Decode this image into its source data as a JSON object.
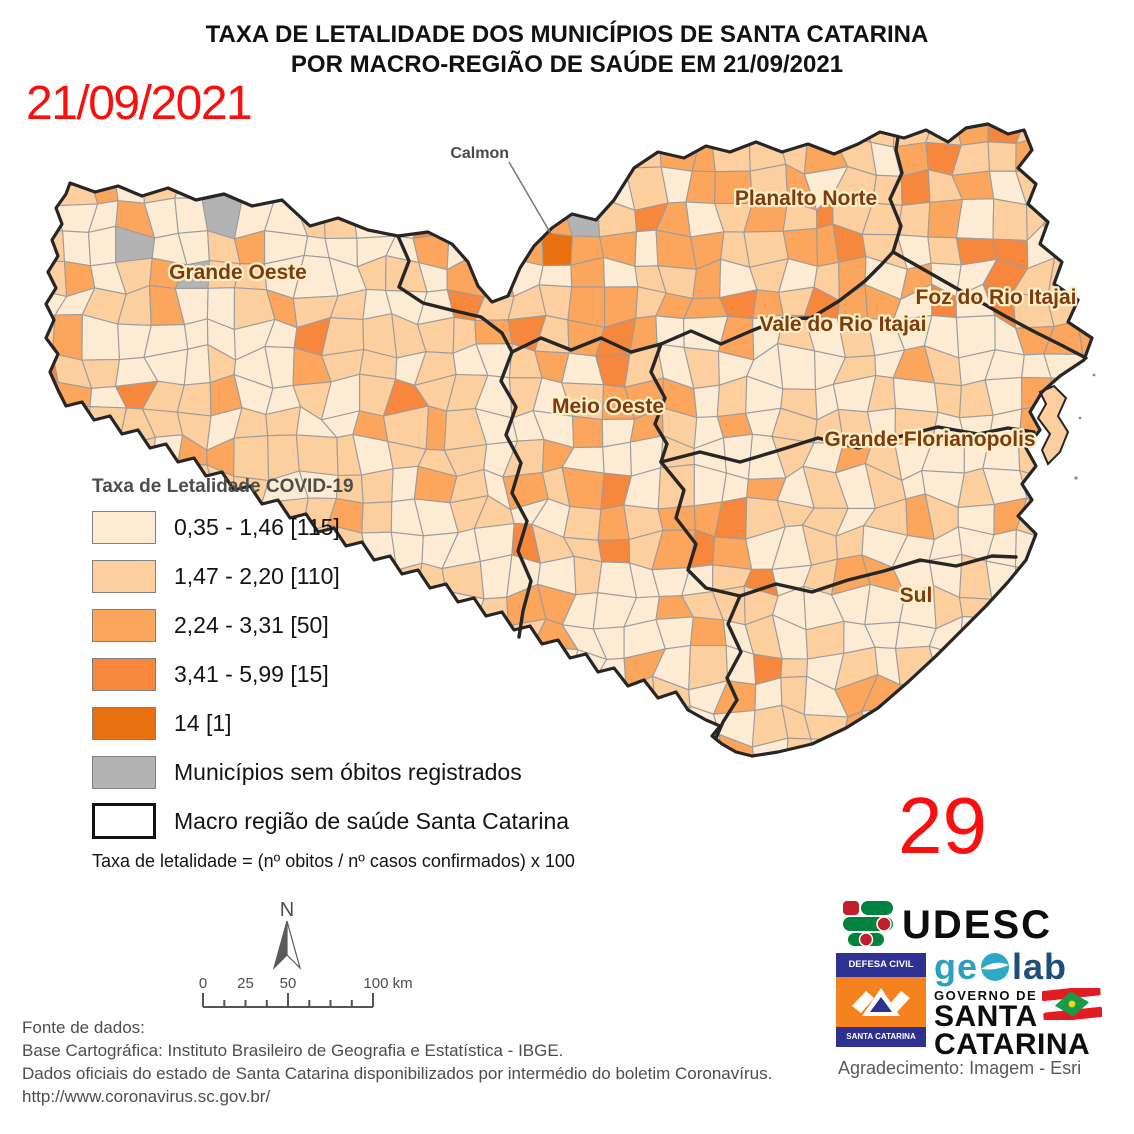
{
  "title": {
    "line1": "TAXA DE LETALIDADE DOS MUNICÍPIOS DE SANTA CATARINA",
    "line2": "POR MACRO-REGIÃO DE SAÚDE EM 21/09/2021"
  },
  "date_annotation": "21/09/2021",
  "count_annotation": "29",
  "map": {
    "region_labels": [
      "Grande Oeste",
      "Planalto Norte",
      "Meio Oeste",
      "Vale do Rio Itajai",
      "Foz do Rio Itajai",
      "Grande Florianopolis",
      "Sul"
    ],
    "callout_label": "Calmon",
    "north_label": "N"
  },
  "legend": {
    "title": "Taxa de Letalidade COVID-19",
    "classes": [
      {
        "range": "0,35 - 1,46",
        "count": 115,
        "label": "0,35 - 1,46 [115]",
        "color": "#FDEBD3"
      },
      {
        "range": "1,47 - 2,20",
        "count": 110,
        "label": "1,47 - 2,20 [110]",
        "color": "#FDCE9E"
      },
      {
        "range": "2,24 - 3,31",
        "count": 50,
        "label": "2,24 - 3,31 [50]",
        "color": "#FBA55D"
      },
      {
        "range": "3,41 - 5,99",
        "count": 15,
        "label": "3,41 - 5,99 [15]",
        "color": "#F6873C"
      },
      {
        "range": "14",
        "count": 1,
        "label": "14 [1]",
        "color": "#E8700E"
      }
    ],
    "no_deaths": {
      "label": "Municípios sem óbitos registrados",
      "color": "#B3B3B3"
    },
    "macro": {
      "label": "Macro região de saúde Santa Catarina"
    },
    "formula": "Taxa de letalidade = (nº obitos / nº casos confirmados) x 100"
  },
  "scalebar": {
    "tick_labels": [
      "0",
      "25",
      "50",
      "100 km"
    ]
  },
  "footer": {
    "lines": [
      "Fonte de dados:",
      "Base Cartográfica: Instituto Brasileiro de Geografia e Estatística - IBGE.",
      "Dados oficiais do estado de Santa Catarina disponibilizados por intermédio do boletim Coronavírus.",
      "http://www.coronavirus.sc.gov.br/"
    ]
  },
  "credits": {
    "udesc_text": "UDESC",
    "geolab_ge": "ge",
    "geolab_lab": "lab",
    "defesa_civil_top": "DEFESA CIVIL",
    "defesa_civil_bottom": "SANTA CATARINA",
    "governo_line1": "GOVERNO DE",
    "governo_line2": "SANTA",
    "governo_line3": "CATARINA",
    "esri": "Agradecimento: Imagem - Esri"
  },
  "colors": {
    "annotation_red": "#FA0F0F",
    "region_label_brown": "#7E3A10",
    "callout_gray": "#4a4a4a",
    "macro_border": "#262626",
    "municipality_stroke": "#9C9C9C"
  }
}
